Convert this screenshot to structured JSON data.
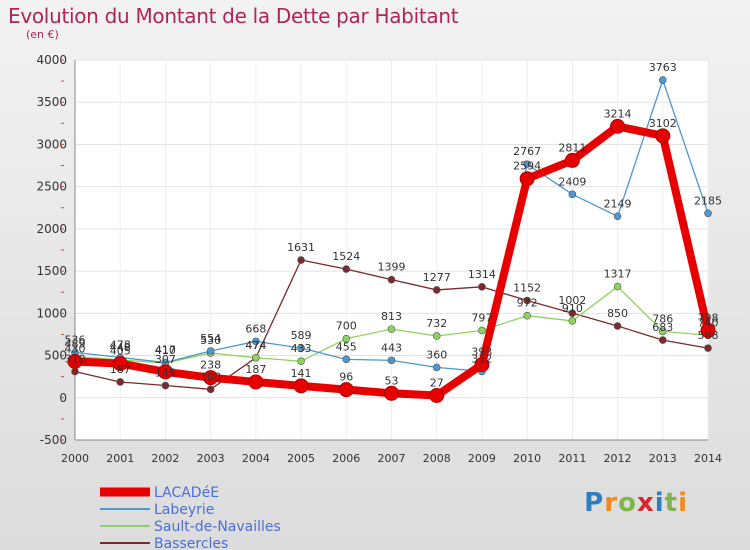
{
  "header": {
    "title": "Evolution du Montant de la Dette par Habitant",
    "subtitle": "(en €)"
  },
  "logo": {
    "text": "Proxiti"
  },
  "chart_data": {
    "type": "line",
    "x": [
      2000,
      2001,
      2002,
      2003,
      2004,
      2005,
      2006,
      2007,
      2008,
      2009,
      2010,
      2011,
      2012,
      2013,
      2014
    ],
    "ylim": [
      -500,
      4000
    ],
    "yticks": [
      -500,
      0,
      500,
      1000,
      1500,
      2000,
      2500,
      3000,
      3500,
      4000
    ],
    "grid": true,
    "legend_position": "bottom-left",
    "series": [
      {
        "name": "LACADéE",
        "color": "#e60000",
        "values": [
          430,
          405,
          307,
          238,
          187,
          141,
          96,
          53,
          27,
          393,
          2594,
          2811,
          3214,
          3102,
          798
        ],
        "labels": [
          "430",
          "405",
          "307",
          "238",
          "187",
          "141",
          "96",
          "53",
          "27",
          "393",
          "2594",
          "2811",
          "3214",
          "3102",
          "798"
        ]
      },
      {
        "name": "Labeyrie",
        "color": "#4f97cf",
        "values": [
          536,
          478,
          417,
          554,
          668,
          589,
          455,
          443,
          360,
          312,
          2767,
          2409,
          2149,
          3763,
          2185
        ],
        "labels": [
          "536",
          "478",
          "417",
          "554",
          "668",
          "589",
          "455",
          "443",
          "360",
          "312",
          "2767",
          "2409",
          "2149",
          "3763",
          "2185"
        ]
      },
      {
        "name": "Sault-de-Navailles",
        "color": "#8dd35f",
        "values": [
          489,
          448,
          410,
          530,
          474,
          433,
          700,
          813,
          732,
          797,
          972,
          910,
          1317,
          786,
          740
        ],
        "labels": [
          "489",
          "448",
          "410",
          "530",
          "474",
          "433",
          "700",
          "813",
          "732",
          "797",
          "972",
          "910",
          "1317",
          "786",
          "740"
        ]
      },
      {
        "name": "Bassercles",
        "color": "#7a2a2a",
        "values": [
          310,
          187,
          145,
          100,
          474,
          1631,
          1524,
          1399,
          1277,
          1314,
          1152,
          1002,
          850,
          683,
          588
        ],
        "labels": [
          "310",
          "187",
          "145",
          "100",
          "474",
          "1631",
          "1524",
          "1399",
          "1277",
          "1314",
          "1152",
          "1002",
          "850",
          "683",
          "588"
        ]
      }
    ]
  }
}
